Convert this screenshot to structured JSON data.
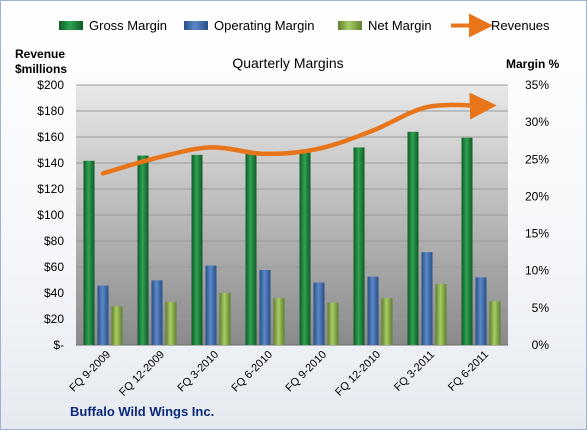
{
  "chart_data": {
    "type": "bar",
    "title": "Quarterly Margins",
    "company": "Buffalo Wild Wings Inc.",
    "ylabel_left_line1": "Revenue",
    "ylabel_left_line2": "$millions",
    "ylabel_right": "Margin %",
    "categories": [
      "FQ 9-2009",
      "FQ 12-2009",
      "FQ 3-2010",
      "FQ 6-2010",
      "FQ 9-2010",
      "FQ 12-2010",
      "FQ 3-2011",
      "FQ 6-2011"
    ],
    "left_ticks": [
      "$-",
      "$20",
      "$40",
      "$60",
      "$80",
      "$100",
      "$120",
      "$140",
      "$160",
      "$180",
      "$200"
    ],
    "right_ticks": [
      "0%",
      "5%",
      "10%",
      "15%",
      "20%",
      "25%",
      "30%",
      "35%"
    ],
    "ylim_left": [
      0,
      200
    ],
    "ylim_right": [
      0,
      35
    ],
    "series": [
      {
        "name": "Gross Margin",
        "type": "bar",
        "axis": "right",
        "color": "#1f8a3f",
        "values": [
          24.8,
          25.5,
          25.6,
          26.0,
          25.9,
          26.6,
          28.7,
          27.9
        ]
      },
      {
        "name": "Operating Margin",
        "type": "bar",
        "axis": "right",
        "color": "#3e6fb3",
        "values": [
          8.0,
          8.7,
          10.7,
          10.1,
          8.4,
          9.2,
          12.5,
          9.1
        ]
      },
      {
        "name": "Net Margin",
        "type": "bar",
        "axis": "right",
        "color": "#8db34a",
        "values": [
          5.2,
          5.8,
          7.0,
          6.3,
          5.7,
          6.3,
          8.2,
          5.9
        ]
      },
      {
        "name": "Revenues",
        "type": "line",
        "axis": "left",
        "color": "#e8751a",
        "values": [
          132,
          144,
          152,
          147,
          151,
          165,
          183,
          184
        ]
      }
    ],
    "grid": true,
    "legend_position": "top"
  }
}
